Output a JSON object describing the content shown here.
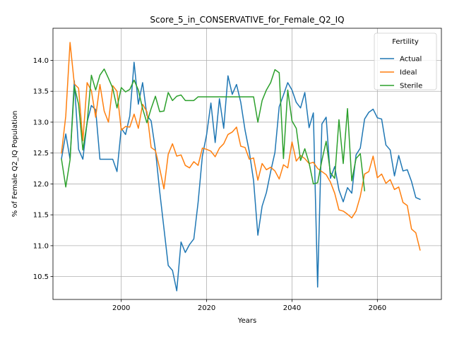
{
  "chart_data": {
    "type": "line",
    "title": "Score_5_in_CONSERVATIVE_for_Female_Q2_IQ",
    "xlabel": "Years",
    "ylabel": "% of Female Q2_IQ Population",
    "xlim": [
      1984,
      2075
    ],
    "ylim": [
      10.13,
      14.52
    ],
    "xticks": [
      2000,
      2020,
      2040,
      2060
    ],
    "yticks": [
      10.5,
      11.0,
      11.5,
      12.0,
      12.5,
      13.0,
      13.5,
      14.0
    ],
    "grid": true,
    "legend": {
      "title": "Fertility",
      "placement": "top-right"
    },
    "series": [
      {
        "name": "Actual",
        "color": "#1f77b4",
        "x": [
          1986,
          1987,
          1988,
          1989,
          1990,
          1991,
          1992,
          1993,
          1994,
          1995,
          1996,
          1997,
          1998,
          1999,
          2000,
          2001,
          2002,
          2003,
          2004,
          2005,
          2006,
          2007,
          2008,
          2009,
          2010,
          2011,
          2012,
          2013,
          2014,
          2015,
          2016,
          2017,
          2018,
          2019,
          2020,
          2021,
          2022,
          2023,
          2024,
          2025,
          2026,
          2027,
          2028,
          2029,
          2030,
          2031,
          2032,
          2033,
          2034,
          2035,
          2036,
          2037,
          2038,
          2039,
          2040,
          2041,
          2042,
          2043,
          2044,
          2045,
          2046,
          2047,
          2048,
          2049,
          2050,
          2051,
          2052,
          2053,
          2054,
          2055,
          2056,
          2057,
          2058,
          2059,
          2060,
          2061,
          2062,
          2063,
          2064,
          2065,
          2066,
          2067,
          2068,
          2069,
          2070
        ],
        "y": [
          12.41,
          12.81,
          12.4,
          13.67,
          12.56,
          12.4,
          13.0,
          13.27,
          13.2,
          12.4,
          12.4,
          12.4,
          12.4,
          12.2,
          12.9,
          12.8,
          13.1,
          13.97,
          13.29,
          13.64,
          13.11,
          13.02,
          12.55,
          11.88,
          11.28,
          10.68,
          10.6,
          10.27,
          11.06,
          10.89,
          11.02,
          11.11,
          11.7,
          12.45,
          12.8,
          13.31,
          12.67,
          13.38,
          12.9,
          13.75,
          13.45,
          13.61,
          13.32,
          12.87,
          12.52,
          12.05,
          11.17,
          11.64,
          11.86,
          12.2,
          12.51,
          13.25,
          13.44,
          13.64,
          13.52,
          13.32,
          13.23,
          13.48,
          12.91,
          13.15,
          10.33,
          12.97,
          13.08,
          12.09,
          12.28,
          11.9,
          11.71,
          11.94,
          11.85,
          12.47,
          12.58,
          13.05,
          13.16,
          13.21,
          13.07,
          13.05,
          12.63,
          12.55,
          12.13,
          12.46,
          12.21,
          12.23,
          12.04,
          11.78,
          11.75
        ]
      },
      {
        "name": "Ideal",
        "color": "#ff7f0e",
        "x": [
          1986,
          1987,
          1988,
          1989,
          1990,
          1991,
          1992,
          1993,
          1994,
          1995,
          1996,
          1997,
          1998,
          1999,
          2000,
          2001,
          2002,
          2003,
          2004,
          2005,
          2006,
          2007,
          2008,
          2009,
          2010,
          2011,
          2012,
          2013,
          2014,
          2015,
          2016,
          2017,
          2018,
          2019,
          2020,
          2021,
          2022,
          2023,
          2024,
          2025,
          2026,
          2027,
          2028,
          2029,
          2030,
          2031,
          2032,
          2033,
          2034,
          2035,
          2036,
          2037,
          2038,
          2039,
          2040,
          2041,
          2042,
          2043,
          2044,
          2045,
          2046,
          2047,
          2048,
          2049,
          2050,
          2051,
          2052,
          2053,
          2054,
          2055,
          2056,
          2057,
          2058,
          2059,
          2060,
          2061,
          2062,
          2063,
          2064,
          2065,
          2066,
          2067,
          2068,
          2069,
          2070
        ],
        "y": [
          12.5,
          13.1,
          14.29,
          13.62,
          13.55,
          12.7,
          13.64,
          13.51,
          13.08,
          13.61,
          13.18,
          13.0,
          13.59,
          13.5,
          12.87,
          12.93,
          12.92,
          13.13,
          12.9,
          13.29,
          13.17,
          12.59,
          12.54,
          12.25,
          11.92,
          12.48,
          12.65,
          12.45,
          12.47,
          12.3,
          12.26,
          12.36,
          12.3,
          12.58,
          12.56,
          12.53,
          12.44,
          12.58,
          12.65,
          12.8,
          12.84,
          12.92,
          12.61,
          12.59,
          12.4,
          12.42,
          12.06,
          12.33,
          12.23,
          12.27,
          12.21,
          12.08,
          12.31,
          12.26,
          12.68,
          12.37,
          12.46,
          12.41,
          12.33,
          12.35,
          12.25,
          12.2,
          12.15,
          12.03,
          11.85,
          11.58,
          11.56,
          11.51,
          11.45,
          11.56,
          11.8,
          12.16,
          12.2,
          12.45,
          12.1,
          12.16,
          12.01,
          12.07,
          11.91,
          11.95,
          11.7,
          11.65,
          11.27,
          11.21,
          10.93
        ]
      },
      {
        "name": "Sterile",
        "color": "#2ca02c",
        "x": [
          1986,
          1987,
          1988,
          1989,
          1990,
          1991,
          1992,
          1993,
          1994,
          1995,
          1996,
          1997,
          1998,
          1999,
          2000,
          2001,
          2002,
          2003,
          2004,
          2005,
          2006,
          2007,
          2008,
          2009,
          2010,
          2011,
          2012,
          2013,
          2014,
          2015,
          2016,
          2017,
          2018,
          2019,
          2020,
          2021,
          2022,
          2023,
          2024,
          2025,
          2026,
          2027,
          2028,
          2029,
          2030,
          2031,
          2032,
          2033,
          2034,
          2035,
          2036,
          2037,
          2038,
          2039,
          2040,
          2041,
          2042,
          2043,
          2044,
          2045,
          2046,
          2047,
          2048,
          2049,
          2050,
          2051,
          2052,
          2053,
          2054,
          2055,
          2056,
          2057
        ],
        "y": [
          12.4,
          11.95,
          12.39,
          13.58,
          13.29,
          12.55,
          12.99,
          13.76,
          13.52,
          13.76,
          13.86,
          13.71,
          13.55,
          13.23,
          13.56,
          13.49,
          13.53,
          13.68,
          13.52,
          13.22,
          12.99,
          13.22,
          13.42,
          13.17,
          13.18,
          13.48,
          13.35,
          13.42,
          13.44,
          13.35,
          13.35,
          13.35,
          13.41,
          13.41,
          13.41,
          13.41,
          13.41,
          13.41,
          13.41,
          13.41,
          13.41,
          13.41,
          13.41,
          13.41,
          13.41,
          13.41,
          13.0,
          13.35,
          13.52,
          13.64,
          13.85,
          13.8,
          12.41,
          13.52,
          13.02,
          12.9,
          12.38,
          12.57,
          12.34,
          12.0,
          12.02,
          12.38,
          12.69,
          12.18,
          12.09,
          13.04,
          12.33,
          13.22,
          12.05,
          12.41,
          12.49,
          11.89
        ]
      }
    ]
  }
}
